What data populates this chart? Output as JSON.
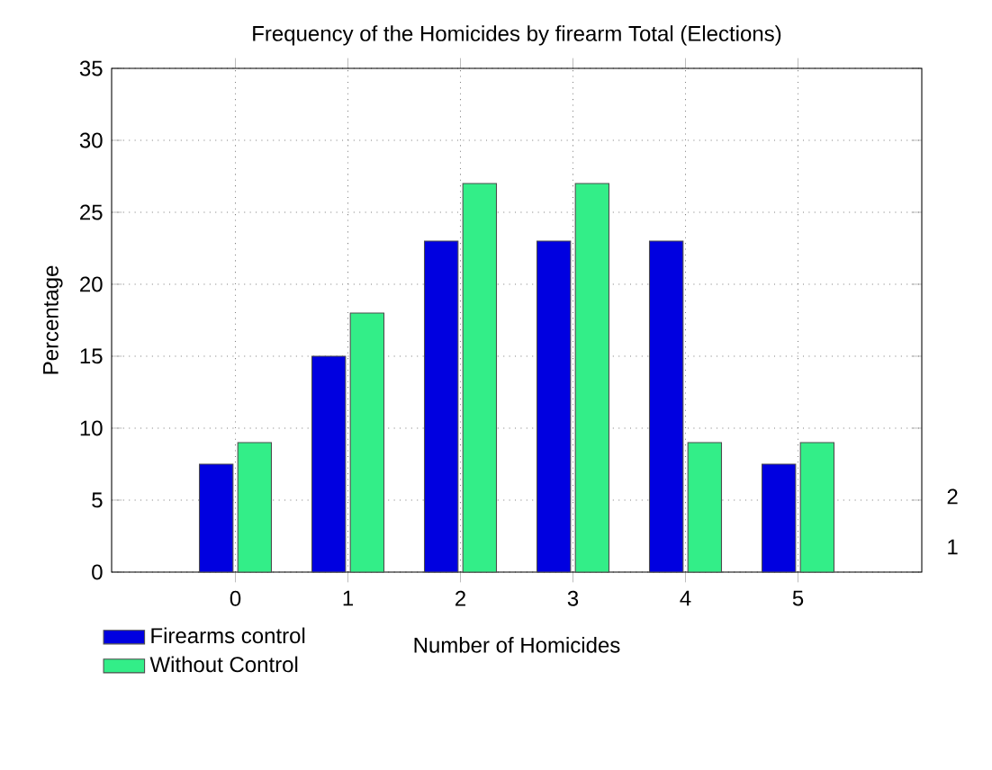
{
  "chart_data": {
    "type": "bar",
    "title": "Frequency of the Homicides by firearm Total (Elections)",
    "xlabel": "Number of Homicides",
    "ylabel": "Percentage",
    "categories": [
      "0",
      "1",
      "2",
      "3",
      "4",
      "5"
    ],
    "series": [
      {
        "name": "Firearms control",
        "color": "#0000e0",
        "values": [
          7.5,
          15,
          23,
          23,
          23,
          7.5
        ]
      },
      {
        "name": "Without Control",
        "color": "#33ee88",
        "values": [
          9,
          18,
          27,
          27,
          9,
          9
        ]
      }
    ],
    "ylim": [
      0,
      35
    ],
    "yticks": [
      0,
      5,
      10,
      15,
      20,
      25,
      30,
      35
    ],
    "grid": true,
    "legend": "bottom left",
    "annotations": [
      "1",
      "2"
    ]
  }
}
